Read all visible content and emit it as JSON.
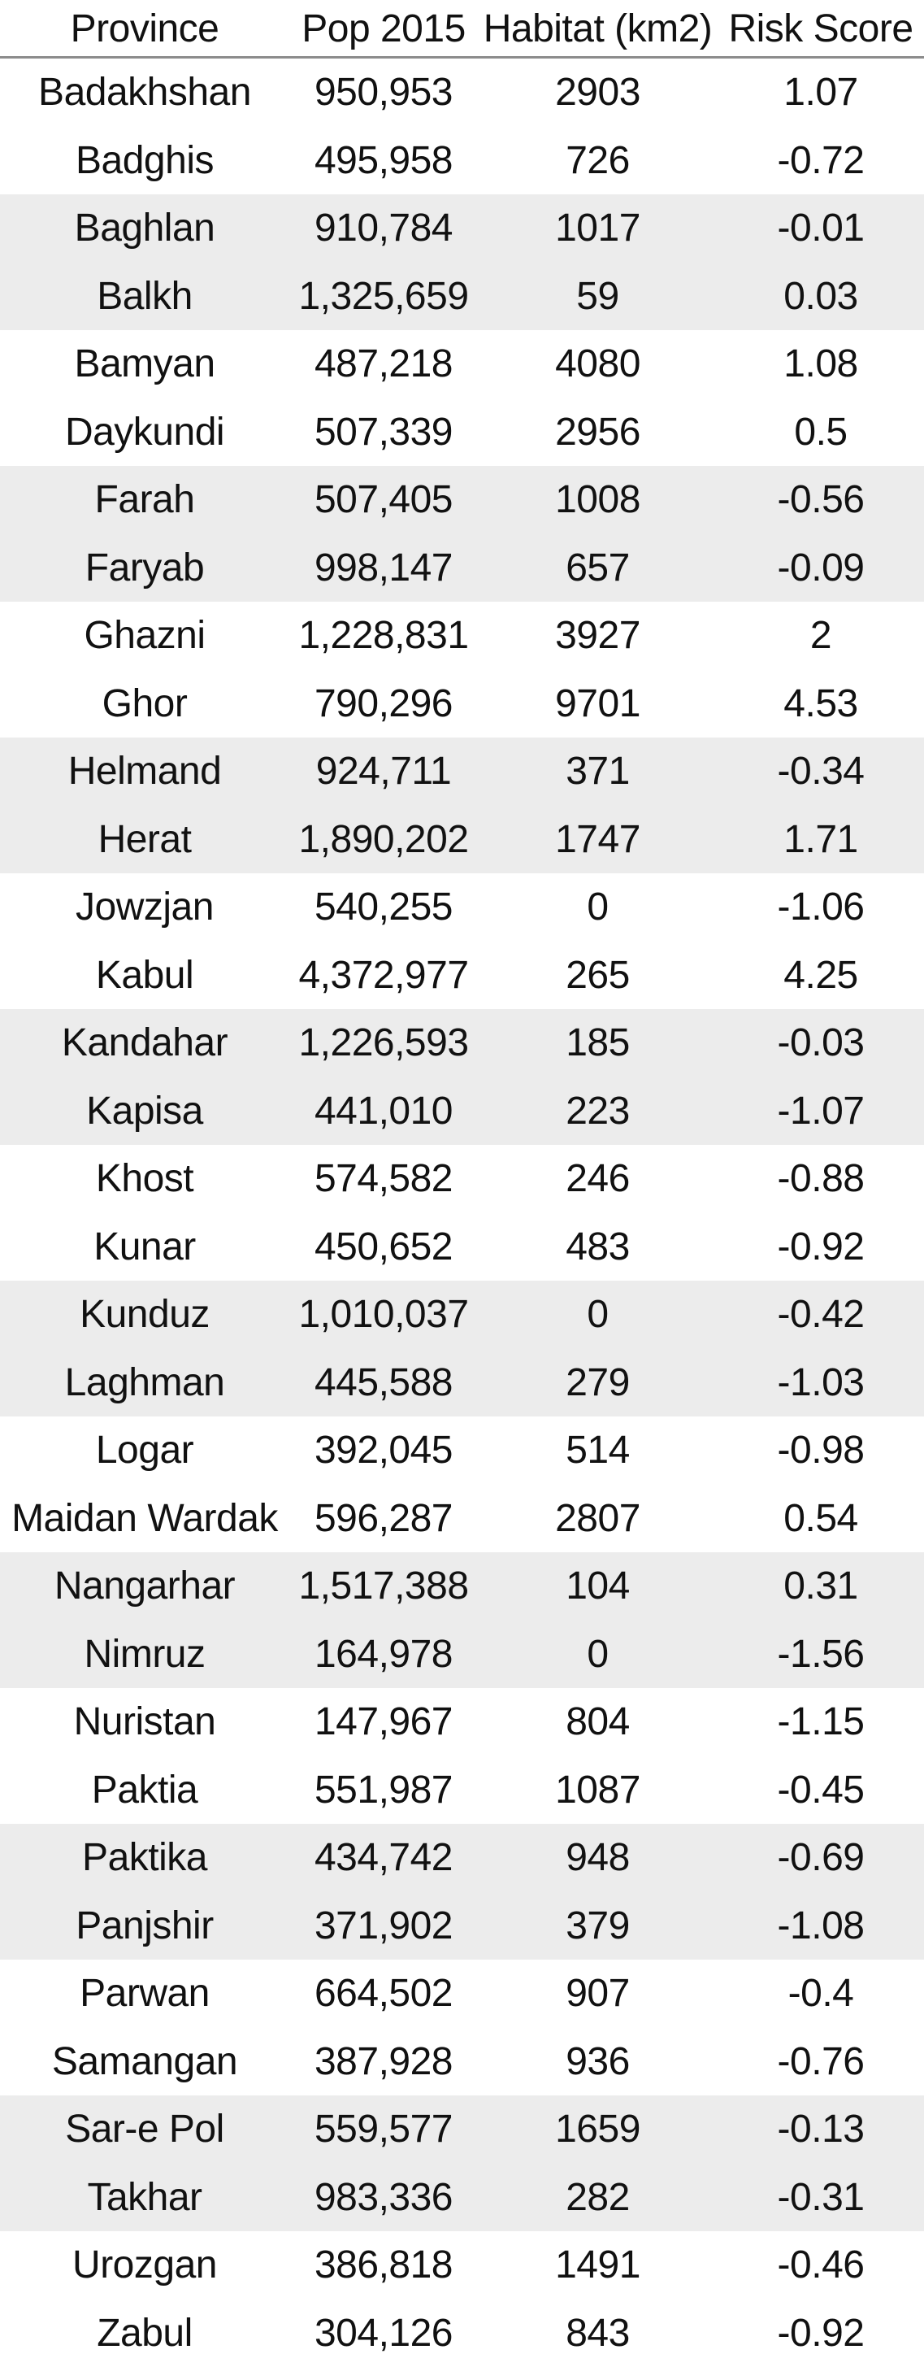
{
  "table": {
    "headers": [
      "Province",
      "Pop 2015",
      "Habitat (km2)",
      "Risk Score"
    ],
    "rows": [
      [
        "Badakhshan",
        "950,953",
        "2903",
        "1.07"
      ],
      [
        "Badghis",
        "495,958",
        "726",
        "-0.72"
      ],
      [
        "Baghlan",
        "910,784",
        "1017",
        "-0.01"
      ],
      [
        "Balkh",
        "1,325,659",
        "59",
        "0.03"
      ],
      [
        "Bamyan",
        "487,218",
        "4080",
        "1.08"
      ],
      [
        "Daykundi",
        "507,339",
        "2956",
        "0.5"
      ],
      [
        "Farah",
        "507,405",
        "1008",
        "-0.56"
      ],
      [
        "Faryab",
        "998,147",
        "657",
        "-0.09"
      ],
      [
        "Ghazni",
        "1,228,831",
        "3927",
        "2"
      ],
      [
        "Ghor",
        "790,296",
        "9701",
        "4.53"
      ],
      [
        "Helmand",
        "924,711",
        "371",
        "-0.34"
      ],
      [
        "Herat",
        "1,890,202",
        "1747",
        "1.71"
      ],
      [
        "Jowzjan",
        "540,255",
        "0",
        "-1.06"
      ],
      [
        "Kabul",
        "4,372,977",
        "265",
        "4.25"
      ],
      [
        "Kandahar",
        "1,226,593",
        "185",
        "-0.03"
      ],
      [
        "Kapisa",
        "441,010",
        "223",
        "-1.07"
      ],
      [
        "Khost",
        "574,582",
        "246",
        "-0.88"
      ],
      [
        "Kunar",
        "450,652",
        "483",
        "-0.92"
      ],
      [
        "Kunduz",
        "1,010,037",
        "0",
        "-0.42"
      ],
      [
        "Laghman",
        "445,588",
        "279",
        "-1.03"
      ],
      [
        "Logar",
        "392,045",
        "514",
        "-0.98"
      ],
      [
        "Maidan Wardak",
        "596,287",
        "2807",
        "0.54"
      ],
      [
        "Nangarhar",
        "1,517,388",
        "104",
        "0.31"
      ],
      [
        "Nimruz",
        "164,978",
        "0",
        "-1.56"
      ],
      [
        "Nuristan",
        "147,967",
        "804",
        "-1.15"
      ],
      [
        "Paktia",
        "551,987",
        "1087",
        "-0.45"
      ],
      [
        "Paktika",
        "434,742",
        "948",
        "-0.69"
      ],
      [
        "Panjshir",
        "371,902",
        "379",
        "-1.08"
      ],
      [
        "Parwan",
        "664,502",
        "907",
        "-0.4"
      ],
      [
        "Samangan",
        "387,928",
        "936",
        "-0.76"
      ],
      [
        "Sar-e Pol",
        "559,577",
        "1659",
        "-0.13"
      ],
      [
        "Takhar",
        "983,336",
        "282",
        "-0.31"
      ],
      [
        "Urozgan",
        "386,818",
        "1491",
        "-0.46"
      ],
      [
        "Zabul",
        "304,126",
        "843",
        "-0.92"
      ]
    ],
    "shading": {
      "band_color": "#ececec",
      "banded_row_indexes": [
        2,
        3,
        6,
        7,
        10,
        11,
        14,
        15,
        18,
        19,
        22,
        23,
        26,
        27,
        30,
        31
      ]
    }
  }
}
